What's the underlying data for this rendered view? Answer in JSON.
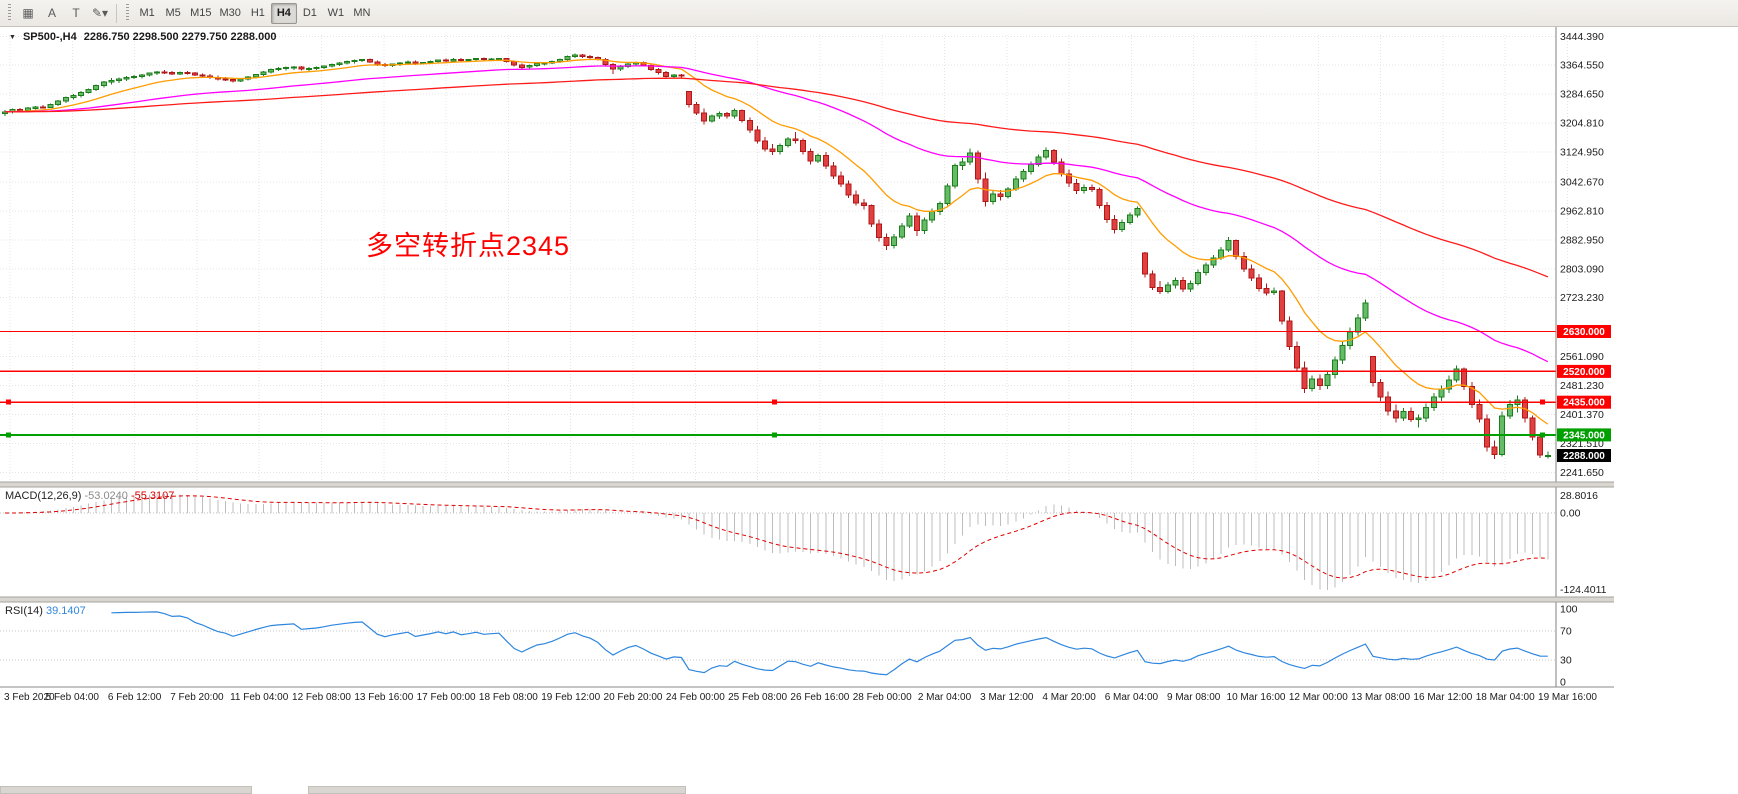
{
  "toolbar": {
    "tools": [
      {
        "name": "chart-grid-tool",
        "glyph": "▦"
      },
      {
        "name": "text-label-tool",
        "glyph": "A"
      },
      {
        "name": "text-tool",
        "glyph": "T"
      },
      {
        "name": "draw-objects-tool",
        "glyph": "✎",
        "caret": "▾"
      }
    ],
    "periods": [
      "M1",
      "M5",
      "M15",
      "M30",
      "H1",
      "H4",
      "D1",
      "W1",
      "MN"
    ],
    "active_period": "H4"
  },
  "chart": {
    "collapse_arrow": "▼",
    "title": "SP500-,H4",
    "ohlc": "2286.750 2298.500 2279.750 2288.000",
    "annotation": {
      "text": "多空转折点2345",
      "color": "#ff0000"
    }
  },
  "macd": {
    "label": "MACD(12,26,9)",
    "main_value": "-53.0240",
    "signal_value": "-55.3107",
    "scale_top": "28.8016",
    "scale_zero": "0.00",
    "scale_bottom": "-124.4011"
  },
  "rsi": {
    "label": "RSI(14)",
    "value": "39.1407",
    "scale": [
      "100",
      "70",
      "30",
      "0"
    ]
  },
  "chart_data": {
    "type": "candlestick",
    "symbol": "SP500-",
    "timeframe": "H4",
    "price_range": {
      "min": 2215,
      "max": 3470
    },
    "colors": {
      "up_fill": "#66bb66",
      "up_stroke": "#1b7e1b",
      "down_fill": "#e04040",
      "down_stroke": "#b01818",
      "grid": "#e4e4e4"
    },
    "y_axis_labels": [
      "3444.390",
      "3364.550",
      "3284.650",
      "3204.810",
      "3124.950",
      "3042.670",
      "2962.810",
      "2882.950",
      "2803.090",
      "2723.230",
      "2561.090",
      "2481.230",
      "2401.370",
      "2321.510",
      "2241.650"
    ],
    "x_axis_labels": [
      "3 Feb 2020",
      "5 Feb 04:00",
      "6 Feb 12:00",
      "7 Feb 20:00",
      "11 Feb 04:00",
      "12 Feb 08:00",
      "13 Feb 16:00",
      "17 Feb 00:00",
      "18 Feb 08:00",
      "19 Feb 12:00",
      "20 Feb 20:00",
      "24 Feb 00:00",
      "25 Feb 08:00",
      "26 Feb 16:00",
      "28 Feb 00:00",
      "2 Mar 04:00",
      "3 Mar 12:00",
      "4 Mar 20:00",
      "6 Mar 04:00",
      "9 Mar 08:00",
      "10 Mar 16:00",
      "12 Mar 00:00",
      "13 Mar 08:00",
      "16 Mar 12:00",
      "18 Mar 04:00",
      "19 Mar 16:00"
    ],
    "levels": [
      {
        "value": 2630,
        "label": "2630.000",
        "color": "#ff0000",
        "width": 1.4
      },
      {
        "value": 2520,
        "label": "2520.000",
        "color": "#ff0000",
        "width": 1.4
      },
      {
        "value": 2435,
        "label": "2435.000",
        "color": "#ff0000",
        "width": 1.4,
        "marker": true
      },
      {
        "value": 2345,
        "label": "2345.000",
        "color": "#00a000",
        "width": 2,
        "marker": true
      },
      {
        "value": 2288,
        "label": "2288.000",
        "color": "#000000",
        "type": "bid"
      }
    ],
    "moving_averages": [
      {
        "period": 13,
        "color": "#ff9c00"
      },
      {
        "period": 50,
        "color": "#ff00ff"
      },
      {
        "period": 120,
        "color": "#ff1a1a"
      }
    ],
    "indicators": {
      "macd": {
        "fast": 12,
        "slow": 26,
        "signal": 9
      },
      "rsi": {
        "period": 14
      }
    },
    "candles": [
      [
        3232,
        3241,
        3225,
        3236
      ],
      [
        3236,
        3245,
        3231,
        3242
      ],
      [
        3242,
        3247,
        3236,
        3239
      ],
      [
        3239,
        3249,
        3234,
        3246
      ],
      [
        3246,
        3252,
        3242,
        3250
      ],
      [
        3250,
        3255,
        3245,
        3248
      ],
      [
        3248,
        3259,
        3246,
        3256
      ],
      [
        3256,
        3269,
        3252,
        3266
      ],
      [
        3266,
        3278,
        3261,
        3275
      ],
      [
        3275,
        3285,
        3270,
        3281
      ],
      [
        3281,
        3293,
        3276,
        3290
      ],
      [
        3290,
        3301,
        3286,
        3298
      ],
      [
        3298,
        3311,
        3293,
        3308
      ],
      [
        3308,
        3321,
        3303,
        3318
      ],
      [
        3318,
        3329,
        3312,
        3322
      ],
      [
        3322,
        3331,
        3316,
        3327
      ],
      [
        3327,
        3335,
        3321,
        3331
      ],
      [
        3331,
        3338,
        3326,
        3333
      ],
      [
        3333,
        3341,
        3328,
        3338
      ],
      [
        3338,
        3345,
        3333,
        3343
      ],
      [
        3343,
        3349,
        3338,
        3346
      ],
      [
        3346,
        3351,
        3340,
        3344
      ],
      [
        3344,
        3348,
        3337,
        3341
      ],
      [
        3341,
        3347,
        3338,
        3345
      ],
      [
        3345,
        3349,
        3339,
        3343
      ],
      [
        3343,
        3346,
        3335,
        3338
      ],
      [
        3338,
        3342,
        3331,
        3335
      ],
      [
        3335,
        3340,
        3327,
        3331
      ],
      [
        3331,
        3336,
        3323,
        3327
      ],
      [
        3327,
        3332,
        3321,
        3325
      ],
      [
        3325,
        3330,
        3317,
        3321
      ],
      [
        3321,
        3328,
        3318,
        3326
      ],
      [
        3326,
        3335,
        3322,
        3332
      ],
      [
        3332,
        3341,
        3328,
        3339
      ],
      [
        3339,
        3349,
        3335,
        3346
      ],
      [
        3346,
        3356,
        3342,
        3353
      ],
      [
        3353,
        3359,
        3348,
        3356
      ],
      [
        3356,
        3361,
        3350,
        3358
      ],
      [
        3358,
        3363,
        3352,
        3360
      ],
      [
        3360,
        3362,
        3350,
        3354
      ],
      [
        3354,
        3359,
        3347,
        3356
      ],
      [
        3356,
        3361,
        3351,
        3358
      ],
      [
        3358,
        3364,
        3354,
        3362
      ],
      [
        3362,
        3369,
        3358,
        3367
      ],
      [
        3367,
        3373,
        3362,
        3371
      ],
      [
        3371,
        3377,
        3366,
        3375
      ],
      [
        3375,
        3380,
        3370,
        3378
      ],
      [
        3378,
        3382,
        3373,
        3380
      ],
      [
        3380,
        3383,
        3371,
        3374
      ],
      [
        3374,
        3378,
        3363,
        3367
      ],
      [
        3367,
        3371,
        3359,
        3364
      ],
      [
        3364,
        3370,
        3360,
        3368
      ],
      [
        3368,
        3374,
        3363,
        3371
      ],
      [
        3371,
        3377,
        3367,
        3374
      ],
      [
        3374,
        3378,
        3365,
        3369
      ],
      [
        3369,
        3374,
        3366,
        3372
      ],
      [
        3372,
        3377,
        3368,
        3375
      ],
      [
        3375,
        3381,
        3371,
        3379
      ],
      [
        3379,
        3383,
        3374,
        3377
      ],
      [
        3377,
        3385,
        3373,
        3381
      ],
      [
        3381,
        3384,
        3375,
        3378
      ],
      [
        3378,
        3382,
        3373,
        3380
      ],
      [
        3380,
        3385,
        3376,
        3383
      ],
      [
        3383,
        3386,
        3378,
        3381
      ],
      [
        3381,
        3384,
        3377,
        3382
      ],
      [
        3382,
        3385,
        3378,
        3383
      ],
      [
        3383,
        3385,
        3372,
        3375
      ],
      [
        3375,
        3378,
        3361,
        3365
      ],
      [
        3365,
        3369,
        3354,
        3359
      ],
      [
        3359,
        3366,
        3355,
        3364
      ],
      [
        3364,
        3371,
        3360,
        3369
      ],
      [
        3369,
        3373,
        3364,
        3371
      ],
      [
        3371,
        3377,
        3368,
        3375
      ],
      [
        3375,
        3383,
        3371,
        3381
      ],
      [
        3381,
        3391,
        3377,
        3389
      ],
      [
        3389,
        3397,
        3384,
        3393
      ],
      [
        3393,
        3396,
        3385,
        3389
      ],
      [
        3389,
        3393,
        3382,
        3386
      ],
      [
        3386,
        3389,
        3377,
        3380
      ],
      [
        3380,
        3384,
        3361,
        3367
      ],
      [
        3367,
        3371,
        3341,
        3354
      ],
      [
        3354,
        3365,
        3349,
        3361
      ],
      [
        3361,
        3371,
        3357,
        3368
      ],
      [
        3368,
        3375,
        3363,
        3372
      ],
      [
        3372,
        3375,
        3361,
        3364
      ],
      [
        3364,
        3368,
        3349,
        3353
      ],
      [
        3353,
        3357,
        3339,
        3344
      ],
      [
        3344,
        3349,
        3327,
        3333
      ],
      [
        3333,
        3341,
        3329,
        3337
      ],
      [
        3337,
        3341,
        3330,
        3335
      ],
      [
        3292,
        3294,
        3248,
        3256
      ],
      [
        3256,
        3263,
        3227,
        3233
      ],
      [
        3233,
        3245,
        3201,
        3211
      ],
      [
        3211,
        3229,
        3206,
        3224
      ],
      [
        3224,
        3237,
        3216,
        3231
      ],
      [
        3231,
        3236,
        3217,
        3224
      ],
      [
        3224,
        3245,
        3217,
        3239
      ],
      [
        3239,
        3243,
        3206,
        3212
      ],
      [
        3212,
        3221,
        3178,
        3186
      ],
      [
        3186,
        3197,
        3149,
        3156
      ],
      [
        3156,
        3167,
        3127,
        3134
      ],
      [
        3134,
        3147,
        3117,
        3127
      ],
      [
        3127,
        3149,
        3119,
        3143
      ],
      [
        3143,
        3167,
        3137,
        3161
      ],
      [
        3161,
        3181,
        3149,
        3157
      ],
      [
        3157,
        3163,
        3119,
        3127
      ],
      [
        3127,
        3135,
        3091,
        3101
      ],
      [
        3101,
        3121,
        3095,
        3115
      ],
      [
        3115,
        3125,
        3079,
        3087
      ],
      [
        3087,
        3097,
        3051,
        3059
      ],
      [
        3059,
        3071,
        3029,
        3037
      ],
      [
        3037,
        3047,
        2999,
        3007
      ],
      [
        3007,
        3019,
        2977,
        2985
      ],
      [
        2985,
        2995,
        2967,
        2977
      ],
      [
        2977,
        2981,
        2919,
        2927
      ],
      [
        2927,
        2939,
        2879,
        2889
      ],
      [
        2889,
        2901,
        2855,
        2867
      ],
      [
        2867,
        2899,
        2859,
        2891
      ],
      [
        2891,
        2929,
        2885,
        2921
      ],
      [
        2921,
        2957,
        2915,
        2949
      ],
      [
        2949,
        2959,
        2894,
        2909
      ],
      [
        2909,
        2944,
        2899,
        2937
      ],
      [
        2937,
        2969,
        2929,
        2961
      ],
      [
        2961,
        2989,
        2951,
        2983
      ],
      [
        2983,
        3039,
        2977,
        3031
      ],
      [
        3031,
        3094,
        3025,
        3088
      ],
      [
        3088,
        3109,
        3075,
        3097
      ],
      [
        3097,
        3135,
        3089,
        3123
      ],
      [
        3123,
        3129,
        3039,
        3051
      ],
      [
        3051,
        3069,
        2975,
        2989
      ],
      [
        2989,
        3019,
        2981,
        3009
      ],
      [
        3009,
        3021,
        2991,
        3002
      ],
      [
        3002,
        3029,
        2997,
        3023
      ],
      [
        3023,
        3059,
        3017,
        3051
      ],
      [
        3051,
        3079,
        3043,
        3071
      ],
      [
        3071,
        3099,
        3063,
        3091
      ],
      [
        3091,
        3119,
        3085,
        3111
      ],
      [
        3111,
        3137,
        3105,
        3129
      ],
      [
        3129,
        3133,
        3089,
        3097
      ],
      [
        3097,
        3107,
        3057,
        3065
      ],
      [
        3065,
        3077,
        3029,
        3039
      ],
      [
        3039,
        3051,
        3009,
        3019
      ],
      [
        3019,
        3035,
        3011,
        3027
      ],
      [
        3027,
        3035,
        3015,
        3022
      ],
      [
        3022,
        3027,
        2969,
        2977
      ],
      [
        2977,
        2987,
        2929,
        2939
      ],
      [
        2939,
        2951,
        2901,
        2911
      ],
      [
        2911,
        2939,
        2905,
        2931
      ],
      [
        2931,
        2959,
        2925,
        2951
      ],
      [
        2951,
        2975,
        2945,
        2969
      ],
      [
        2846,
        2849,
        2779,
        2789
      ],
      [
        2789,
        2799,
        2744,
        2751
      ],
      [
        2751,
        2769,
        2733,
        2741
      ],
      [
        2741,
        2767,
        2735,
        2759
      ],
      [
        2759,
        2779,
        2749,
        2771
      ],
      [
        2771,
        2781,
        2739,
        2747
      ],
      [
        2747,
        2771,
        2739,
        2763
      ],
      [
        2763,
        2801,
        2757,
        2793
      ],
      [
        2793,
        2821,
        2785,
        2813
      ],
      [
        2813,
        2841,
        2805,
        2833
      ],
      [
        2833,
        2863,
        2827,
        2855
      ],
      [
        2855,
        2891,
        2849,
        2881
      ],
      [
        2881,
        2884,
        2829,
        2837
      ],
      [
        2837,
        2849,
        2794,
        2803
      ],
      [
        2803,
        2815,
        2769,
        2777
      ],
      [
        2777,
        2789,
        2741,
        2749
      ],
      [
        2749,
        2763,
        2729,
        2737
      ],
      [
        2737,
        2751,
        2731,
        2742
      ],
      [
        2742,
        2745,
        2649,
        2659
      ],
      [
        2659,
        2671,
        2579,
        2589
      ],
      [
        2589,
        2603,
        2519,
        2529
      ],
      [
        2529,
        2547,
        2461,
        2473
      ],
      [
        2473,
        2509,
        2465,
        2499
      ],
      [
        2499,
        2511,
        2469,
        2481
      ],
      [
        2481,
        2521,
        2471,
        2511
      ],
      [
        2511,
        2561,
        2501,
        2551
      ],
      [
        2551,
        2601,
        2541,
        2591
      ],
      [
        2591,
        2641,
        2581,
        2629
      ],
      [
        2629,
        2679,
        2619,
        2667
      ],
      [
        2667,
        2719,
        2659,
        2709
      ],
      [
        2561,
        2563,
        2479,
        2489
      ],
      [
        2489,
        2499,
        2439,
        2449
      ],
      [
        2449,
        2465,
        2399,
        2411
      ],
      [
        2411,
        2429,
        2379,
        2391
      ],
      [
        2391,
        2419,
        2383,
        2409
      ],
      [
        2409,
        2421,
        2381,
        2387
      ],
      [
        2387,
        2401,
        2366,
        2391
      ],
      [
        2391,
        2431,
        2381,
        2421
      ],
      [
        2421,
        2461,
        2411,
        2449
      ],
      [
        2449,
        2481,
        2439,
        2471
      ],
      [
        2471,
        2509,
        2461,
        2497
      ],
      [
        2497,
        2537,
        2489,
        2527
      ],
      [
        2527,
        2531,
        2469,
        2479
      ],
      [
        2479,
        2491,
        2419,
        2429
      ],
      [
        2429,
        2443,
        2379,
        2389
      ],
      [
        2389,
        2401,
        2299,
        2311
      ],
      [
        2311,
        2329,
        2279,
        2291
      ],
      [
        2291,
        2409,
        2285,
        2397
      ],
      [
        2397,
        2441,
        2389,
        2429
      ],
      [
        2429,
        2453,
        2407,
        2441
      ],
      [
        2441,
        2449,
        2379,
        2391
      ],
      [
        2391,
        2399,
        2329,
        2339
      ],
      [
        2339,
        2347,
        2281,
        2289
      ],
      [
        2286.75,
        2298.5,
        2279.75,
        2288
      ]
    ]
  }
}
